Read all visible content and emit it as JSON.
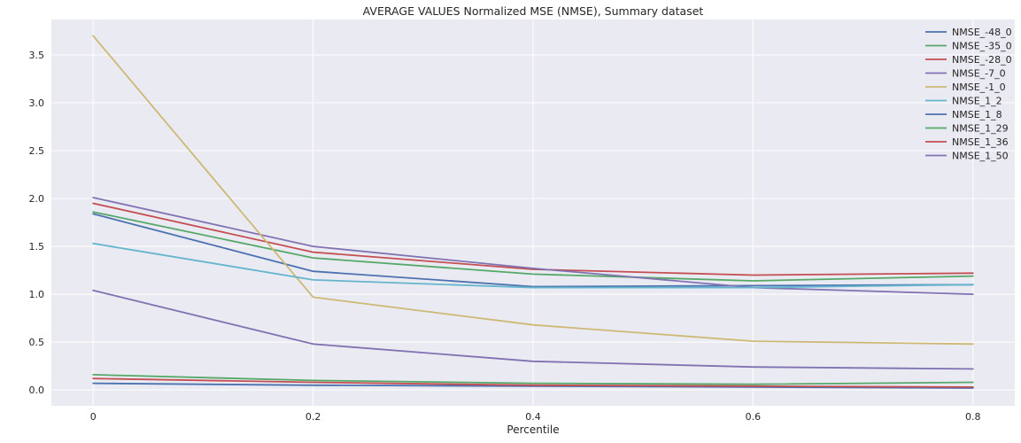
{
  "chart_data": {
    "type": "line",
    "title": "AVERAGE VALUES Normalized MSE (NMSE), Summary dataset",
    "xlabel": "Percentile",
    "ylabel": "",
    "x": [
      0,
      0.2,
      0.4,
      0.6,
      0.8
    ],
    "x_tick_labels": [
      "0",
      "0.2",
      "0.4",
      "0.6",
      "0.8"
    ],
    "xlim": [
      -0.038,
      0.838
    ],
    "ylim": [
      -0.165,
      3.87
    ],
    "y_ticks": [
      0.0,
      0.5,
      1.0,
      1.5,
      2.0,
      2.5,
      3.0,
      3.5
    ],
    "y_tick_labels": [
      "0.0",
      "0.5",
      "1.0",
      "1.5",
      "2.0",
      "2.5",
      "3.0",
      "3.5"
    ],
    "grid": true,
    "legend_position": "top-right",
    "background_color": "#EAEAF2",
    "grid_color": "#FFFFFF",
    "text_color": "#262626",
    "series": [
      {
        "name": "NMSE_-48_0",
        "color": "#4C72B0",
        "values": [
          1.84,
          1.24,
          1.08,
          1.09,
          1.1
        ]
      },
      {
        "name": "NMSE_-35_0",
        "color": "#55A868",
        "values": [
          1.86,
          1.38,
          1.21,
          1.14,
          1.19
        ]
      },
      {
        "name": "NMSE_-28_0",
        "color": "#C44E52",
        "values": [
          1.95,
          1.44,
          1.26,
          1.2,
          1.22
        ]
      },
      {
        "name": "NMSE_-7_0",
        "color": "#8172B2",
        "values": [
          2.01,
          1.5,
          1.27,
          1.07,
          1.0
        ]
      },
      {
        "name": "NMSE_-1_0",
        "color": "#CCB974",
        "values": [
          3.7,
          0.97,
          0.68,
          0.51,
          0.48
        ]
      },
      {
        "name": "NMSE_1_2",
        "color": "#64B5CD",
        "values": [
          1.53,
          1.15,
          1.07,
          1.07,
          1.1
        ]
      },
      {
        "name": "NMSE_1_8",
        "color": "#4C72B0",
        "values": [
          0.07,
          0.05,
          0.04,
          0.03,
          0.02
        ]
      },
      {
        "name": "NMSE_1_29",
        "color": "#55A868",
        "values": [
          0.16,
          0.1,
          0.07,
          0.06,
          0.08
        ]
      },
      {
        "name": "NMSE_1_36",
        "color": "#C44E52",
        "values": [
          0.12,
          0.08,
          0.05,
          0.04,
          0.03
        ]
      },
      {
        "name": "NMSE_1_50",
        "color": "#8172B2",
        "values": [
          1.04,
          0.48,
          0.3,
          0.24,
          0.22
        ]
      }
    ]
  }
}
